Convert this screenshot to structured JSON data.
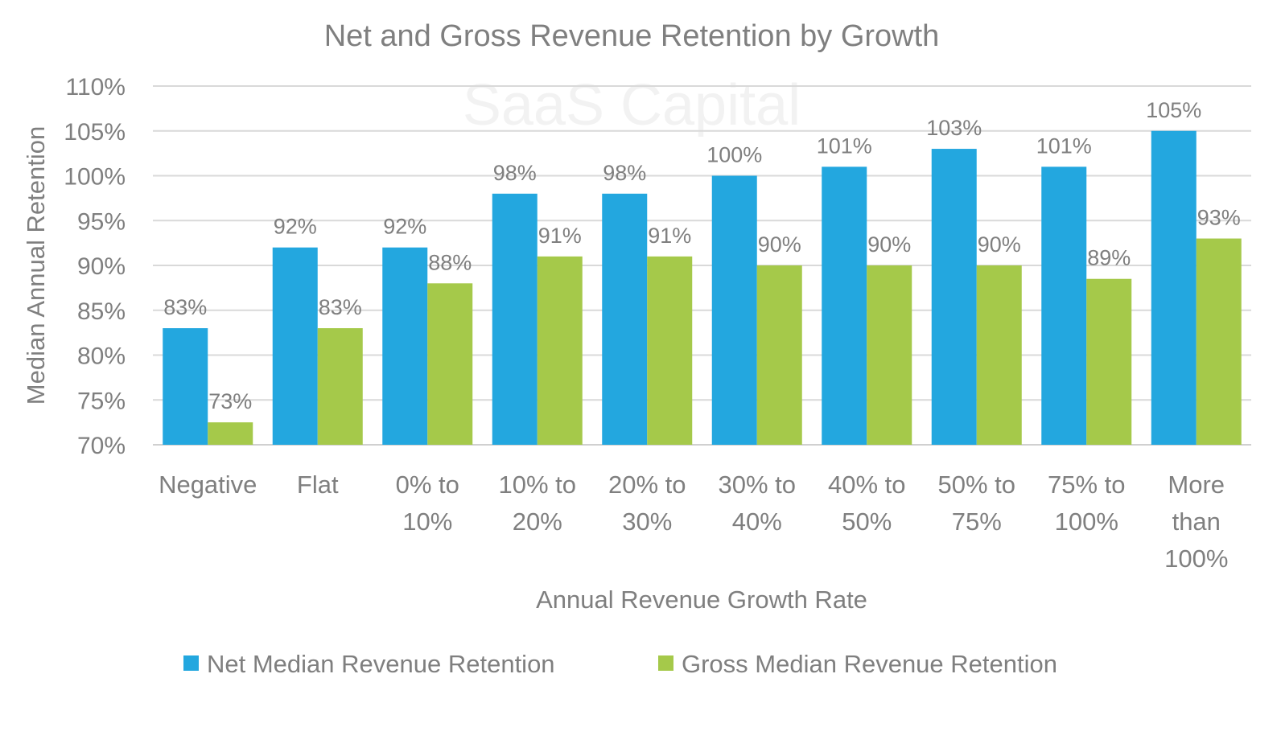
{
  "chart_data": {
    "type": "bar",
    "title": "Net and Gross Revenue Retention by Growth",
    "xlabel": "Annual Revenue Growth Rate",
    "ylabel": "Median Annual Retention",
    "watermark": "SaaS Capital",
    "ylim": [
      70,
      110
    ],
    "yticks": [
      "70%",
      "75%",
      "80%",
      "85%",
      "90%",
      "95%",
      "100%",
      "105%",
      "110%"
    ],
    "ytick_values": [
      70,
      75,
      80,
      85,
      90,
      95,
      100,
      105,
      110
    ],
    "grid": true,
    "legend_position": "bottom",
    "categories": [
      "Negative",
      "Flat",
      "0% to\n10%",
      "10% to\n20%",
      "20% to\n30%",
      "30% to\n40%",
      "40% to\n50%",
      "50% to\n75%",
      "75% to\n100%",
      "More\nthan\n100%"
    ],
    "series": [
      {
        "name": "Net Median Revenue Retention",
        "color": "#23a7df",
        "values": [
          83,
          92,
          92,
          98,
          98,
          100,
          101,
          103,
          101,
          105
        ],
        "labels": [
          "83%",
          "92%",
          "92%",
          "98%",
          "98%",
          "100%",
          "101%",
          "103%",
          "101%",
          "105%"
        ]
      },
      {
        "name": "Gross Median Revenue Retention",
        "color": "#a5c94a",
        "values": [
          72.5,
          83,
          88,
          91,
          91,
          90,
          90,
          90,
          88.5,
          93
        ],
        "labels": [
          "73%",
          "83%",
          "88%",
          "91%",
          "91%",
          "90%",
          "90%",
          "90%",
          "89%",
          "93%"
        ]
      }
    ]
  }
}
